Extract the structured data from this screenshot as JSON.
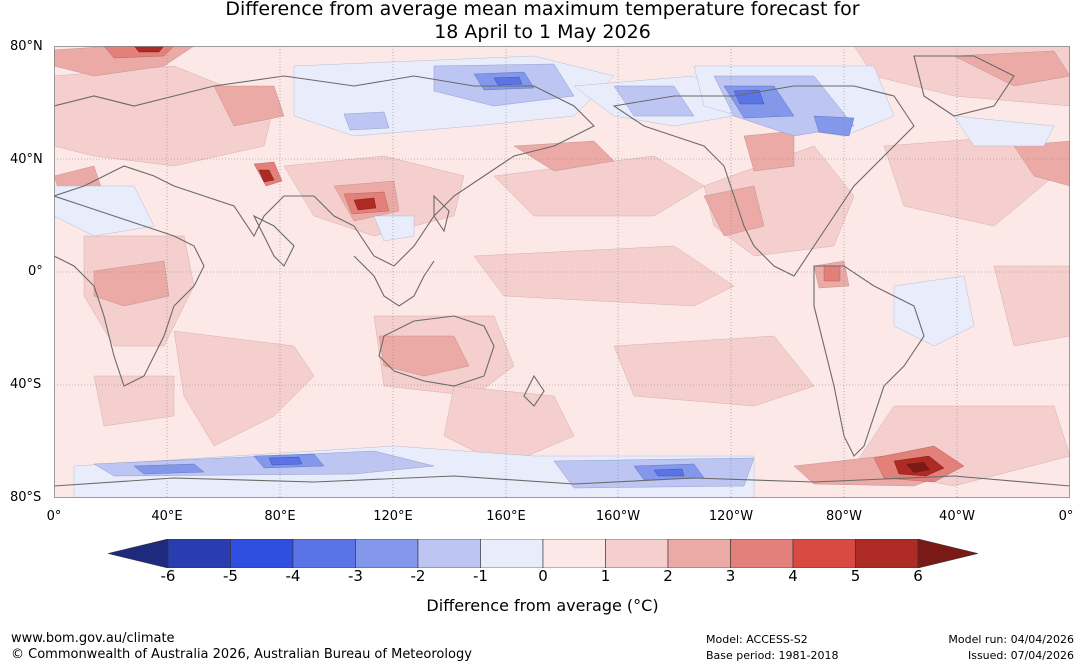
{
  "title": {
    "line1": "Difference from average mean maximum temperature forecast for",
    "line2": "18 April to 1 May 2026"
  },
  "map": {
    "lat_labels": [
      "80°N",
      "40°N",
      "0°",
      "40°S",
      "80°S"
    ],
    "lon_labels": [
      "0°",
      "40°E",
      "80°E",
      "120°E",
      "160°E",
      "160°W",
      "120°W",
      "80°W",
      "40°W",
      "0°"
    ],
    "background_color": "#fce9e7",
    "coast_color": "#6a6a6a",
    "grid_color": "#888888"
  },
  "colorbar": {
    "ticks": [
      "-6",
      "-5",
      "-4",
      "-3",
      "-2",
      "-1",
      "0",
      "1",
      "2",
      "3",
      "4",
      "5",
      "6"
    ],
    "colors": [
      "#1d2a7e",
      "#2a3db0",
      "#2f4fe0",
      "#5a74e6",
      "#8398ea",
      "#bdc6f2",
      "#e9ecfb",
      "#fce9e7",
      "#f4cfcd",
      "#ecaaa6",
      "#e4807a",
      "#d94a42",
      "#ae2a24",
      "#7a1a16"
    ],
    "label": "Difference from average (°C)"
  },
  "footer": {
    "url": "www.bom.gov.au/climate",
    "copyright": "© Commonwealth of Australia 2026, Australian Bureau of Meteorology",
    "model": "Model: ACCESS-S2",
    "base_period": "Base period: 1981-2018",
    "model_run": "Model run: 04/04/2026",
    "issued": "Issued: 07/04/2026"
  }
}
